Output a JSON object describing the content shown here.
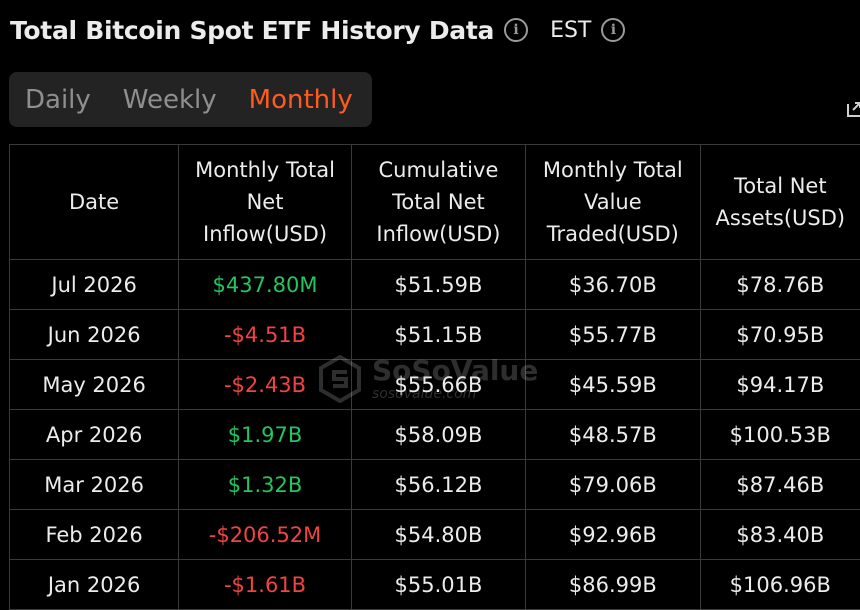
{
  "header": {
    "title": "Total Bitcoin Spot ETF History Data",
    "timezone": "EST"
  },
  "tabs": [
    {
      "label": "Daily",
      "active": false
    },
    {
      "label": "Weekly",
      "active": false
    },
    {
      "label": "Monthly",
      "active": true
    }
  ],
  "table": {
    "columns": [
      "Date",
      "Monthly Total Net Inflow(USD)",
      "Cumulative Total Net Inflow(USD)",
      "Monthly Total Value Traded(USD)",
      "Total Net Assets(USD)"
    ],
    "rows": [
      [
        "Jul 2026",
        "$437.80M",
        "$51.59B",
        "$36.70B",
        "$78.76B"
      ],
      [
        "Jun 2026",
        "-$4.51B",
        "$51.15B",
        "$55.77B",
        "$70.95B"
      ],
      [
        "May 2026",
        "-$2.43B",
        "$55.66B",
        "$45.59B",
        "$94.17B"
      ],
      [
        "Apr 2026",
        "$1.97B",
        "$58.09B",
        "$48.57B",
        "$100.53B"
      ],
      [
        "Mar 2026",
        "$1.32B",
        "$56.12B",
        "$79.06B",
        "$87.46B"
      ],
      [
        "Feb 2026",
        "-$206.52M",
        "$54.80B",
        "$92.96B",
        "$83.40B"
      ],
      [
        "Jan 2026",
        "-$1.61B",
        "$55.01B",
        "$86.99B",
        "$106.96B"
      ]
    ]
  },
  "watermark": {
    "brand": "SoSoValue",
    "url": "sosovalue.com"
  },
  "colors": {
    "accent": "#ff5a1f",
    "positive": "#22c55e",
    "negative": "#f04444"
  }
}
